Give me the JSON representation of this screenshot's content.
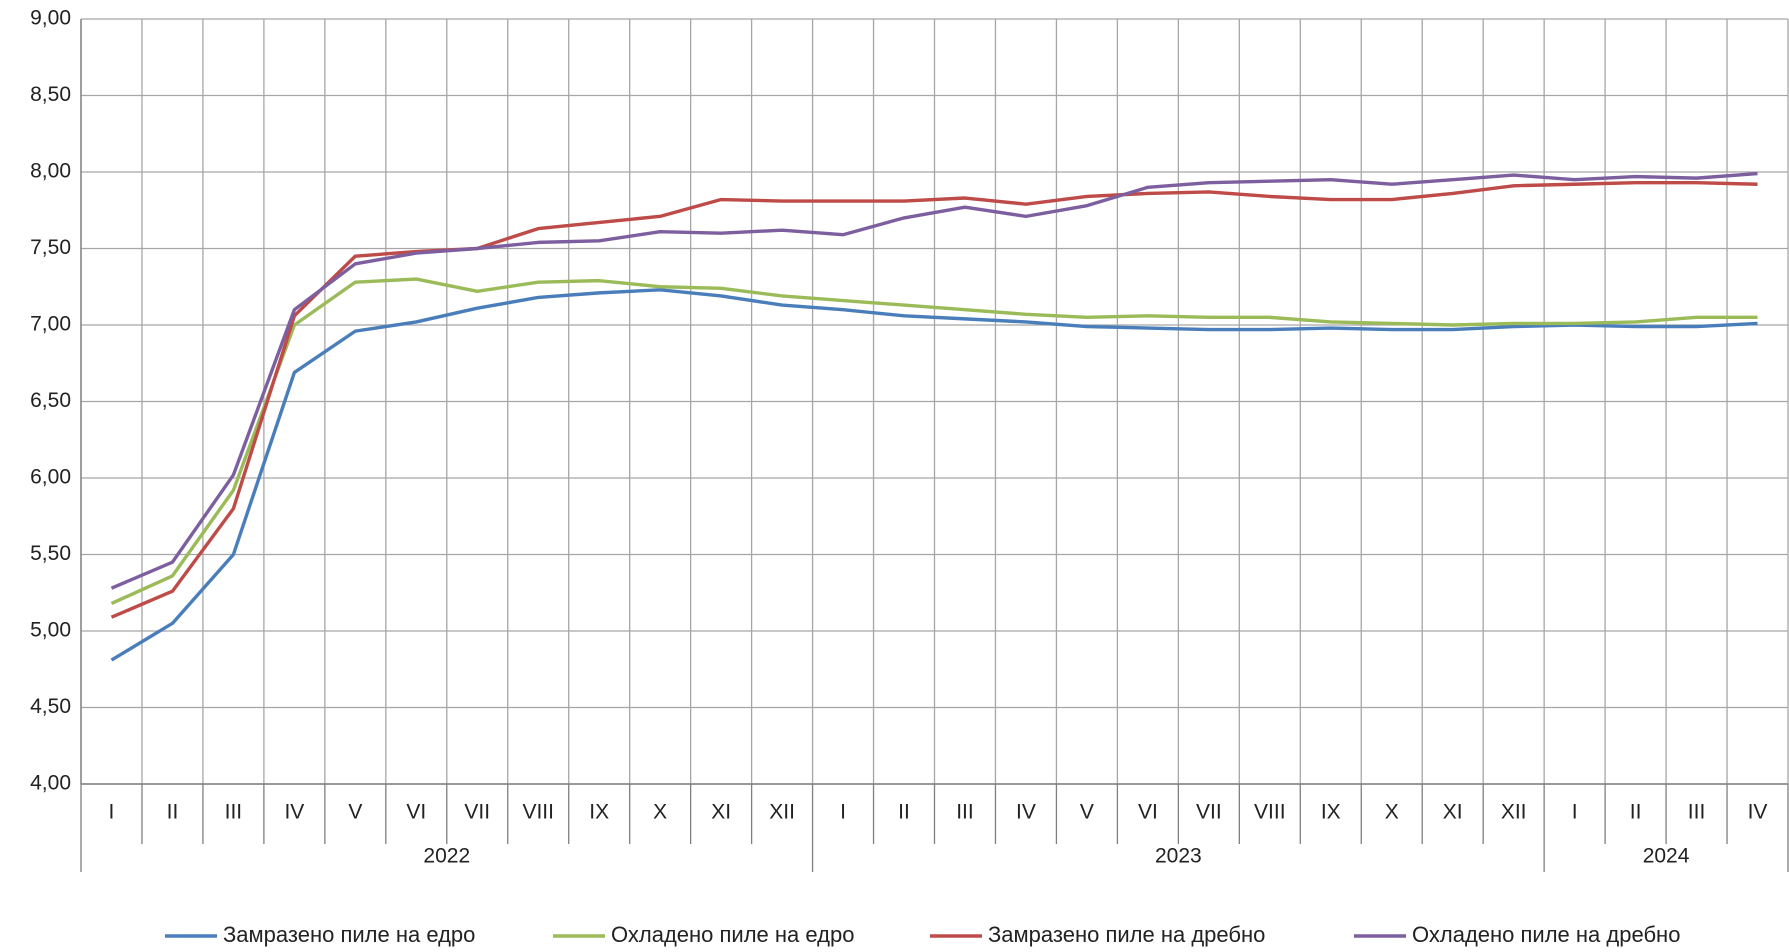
{
  "chart_data": {
    "type": "line",
    "groups": [
      {
        "label": "2022",
        "categories": [
          "I",
          "II",
          "III",
          "IV",
          "V",
          "VI",
          "VII",
          "VIII",
          "IX",
          "X",
          "XI",
          "XII"
        ]
      },
      {
        "label": "2023",
        "categories": [
          "I",
          "II",
          "III",
          "IV",
          "V",
          "VI",
          "VII",
          "VIII",
          "IX",
          "X",
          "XI",
          "XII"
        ]
      },
      {
        "label": "2024",
        "categories": [
          "I",
          "II",
          "III",
          "IV"
        ]
      }
    ],
    "series": [
      {
        "name": "Замразено пиле на едро",
        "color": "#4a7ebb",
        "values": [
          4.81,
          5.05,
          5.5,
          6.69,
          6.96,
          7.02,
          7.11,
          7.18,
          7.21,
          7.23,
          7.19,
          7.13,
          7.1,
          7.06,
          7.04,
          7.02,
          6.99,
          6.98,
          6.97,
          6.97,
          6.98,
          6.97,
          6.97,
          6.99,
          7.0,
          6.99,
          6.99,
          7.01
        ]
      },
      {
        "name": "Охладено пиле на едро",
        "color": "#9bbb59",
        "values": [
          5.18,
          5.36,
          5.92,
          7.0,
          7.28,
          7.3,
          7.22,
          7.28,
          7.29,
          7.25,
          7.24,
          7.19,
          7.16,
          7.13,
          7.1,
          7.07,
          7.05,
          7.06,
          7.05,
          7.05,
          7.02,
          7.01,
          7.0,
          7.01,
          7.01,
          7.02,
          7.05,
          7.05
        ]
      },
      {
        "name": "Замразено пиле на дребно",
        "color": "#be4b48",
        "values": [
          5.09,
          5.26,
          5.8,
          7.06,
          7.45,
          7.48,
          7.5,
          7.63,
          7.67,
          7.71,
          7.82,
          7.81,
          7.81,
          7.81,
          7.83,
          7.79,
          7.84,
          7.86,
          7.87,
          7.84,
          7.82,
          7.82,
          7.86,
          7.91,
          7.92,
          7.93,
          7.93,
          7.92
        ]
      },
      {
        "name": "Охладено пиле на дребно",
        "color": "#7d5fa0",
        "values": [
          5.28,
          5.45,
          6.02,
          7.1,
          7.4,
          7.47,
          7.5,
          7.54,
          7.55,
          7.61,
          7.6,
          7.62,
          7.59,
          7.7,
          7.77,
          7.71,
          7.78,
          7.9,
          7.93,
          7.94,
          7.95,
          7.92,
          7.95,
          7.98,
          7.95,
          7.97,
          7.96,
          7.99
        ]
      }
    ],
    "ylim": [
      4,
      9
    ],
    "yticks": [
      {
        "value": 4,
        "label": "4,00"
      },
      {
        "value": 4.5,
        "label": "4,50"
      },
      {
        "value": 5,
        "label": "5,00"
      },
      {
        "value": 5.5,
        "label": "5,50"
      },
      {
        "value": 6,
        "label": "6,00"
      },
      {
        "value": 6.5,
        "label": "6,50"
      },
      {
        "value": 7,
        "label": "7,00"
      },
      {
        "value": 7.5,
        "label": "7,50"
      },
      {
        "value": 8,
        "label": "8,00"
      },
      {
        "value": 8.5,
        "label": "8,50"
      },
      {
        "value": 9,
        "label": "9,00"
      }
    ],
    "grid": true,
    "legend": "bottom"
  }
}
